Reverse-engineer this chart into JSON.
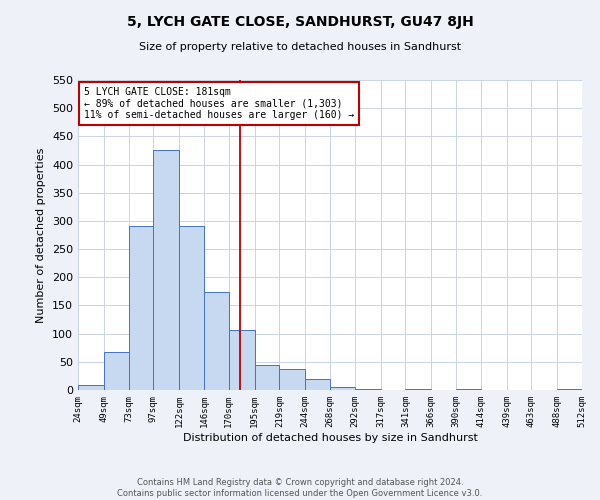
{
  "title": "5, LYCH GATE CLOSE, SANDHURST, GU47 8JH",
  "subtitle": "Size of property relative to detached houses in Sandhurst",
  "xlabel": "Distribution of detached houses by size in Sandhurst",
  "ylabel": "Number of detached properties",
  "bin_edges": [
    24,
    49,
    73,
    97,
    122,
    146,
    170,
    195,
    219,
    244,
    268,
    292,
    317,
    341,
    366,
    390,
    414,
    439,
    463,
    488,
    512
  ],
  "bar_heights": [
    8,
    68,
    291,
    425,
    291,
    173,
    106,
    44,
    38,
    20,
    5,
    1,
    0,
    1,
    0,
    1,
    0,
    0,
    0,
    2
  ],
  "bar_color": "#c6d9f0",
  "bar_edge_color": "#4472c4",
  "vline_x": 181,
  "vline_color": "#c00000",
  "ylim": [
    0,
    550
  ],
  "annotation_title": "5 LYCH GATE CLOSE: 181sqm",
  "annotation_line1": "← 89% of detached houses are smaller (1,303)",
  "annotation_line2": "11% of semi-detached houses are larger (160) →",
  "annotation_box_color": "#c00000",
  "tick_labels": [
    "24sqm",
    "49sqm",
    "73sqm",
    "97sqm",
    "122sqm",
    "146sqm",
    "170sqm",
    "195sqm",
    "219sqm",
    "244sqm",
    "268sqm",
    "292sqm",
    "317sqm",
    "341sqm",
    "366sqm",
    "390sqm",
    "414sqm",
    "439sqm",
    "463sqm",
    "488sqm",
    "512sqm"
  ],
  "footer_line1": "Contains HM Land Registry data © Crown copyright and database right 2024.",
  "footer_line2": "Contains public sector information licensed under the Open Government Licence v3.0.",
  "background_color": "#eef2f8",
  "plot_bg_color": "#ffffff",
  "grid_color": "#c8d4e4",
  "title_fontsize": 10,
  "subtitle_fontsize": 8,
  "ylabel_fontsize": 8,
  "xlabel_fontsize": 8,
  "tick_fontsize": 6.5,
  "footer_fontsize": 6
}
